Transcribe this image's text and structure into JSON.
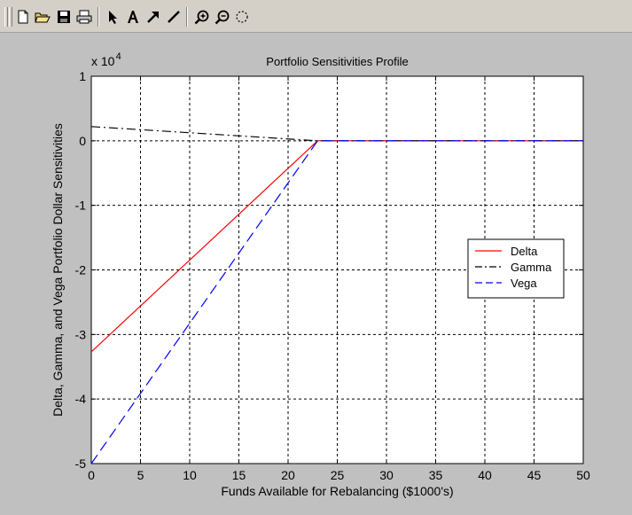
{
  "toolbar": {
    "tools": [
      {
        "icon": "new-file-icon"
      },
      {
        "icon": "open-folder-icon"
      },
      {
        "icon": "save-icon"
      },
      {
        "icon": "print-icon"
      },
      {
        "icon": "select-arrow-icon"
      },
      {
        "icon": "insert-text-icon"
      },
      {
        "icon": "insert-arrow-icon"
      },
      {
        "icon": "insert-line-icon"
      },
      {
        "icon": "zoom-in-icon"
      },
      {
        "icon": "zoom-out-icon"
      },
      {
        "icon": "rotate-icon"
      }
    ]
  },
  "chart_data": {
    "type": "line",
    "title": "Portfolio Sensitivities Profile",
    "xlabel": "Funds Available for Rebalancing ($1000's)",
    "ylabel": "Delta, Gamma, and Vega Portfolio Dollar Sensitivities",
    "y_exponent_label": "x 10",
    "y_exponent_power": "4",
    "xlim": [
      0,
      50
    ],
    "ylim": [
      -5,
      1
    ],
    "xticks": [
      "0",
      "5",
      "10",
      "15",
      "20",
      "25",
      "30",
      "35",
      "40",
      "45",
      "50"
    ],
    "yticks": [
      "1",
      "0",
      "-1",
      "-2",
      "-3",
      "-4",
      "-5"
    ],
    "grid": true,
    "legend_position": "right",
    "series": [
      {
        "name": "Delta",
        "color": "#ff0000",
        "style": "solid",
        "x": [
          0,
          23,
          50
        ],
        "y": [
          -3.27,
          0,
          0
        ]
      },
      {
        "name": "Gamma",
        "color": "#000000",
        "style": "dashdot",
        "x": [
          0,
          23,
          50
        ],
        "y": [
          0.22,
          0,
          0
        ]
      },
      {
        "name": "Vega",
        "color": "#0000ff",
        "style": "dashed",
        "x": [
          0,
          23,
          50
        ],
        "y": [
          -5.0,
          0,
          0
        ]
      }
    ]
  }
}
